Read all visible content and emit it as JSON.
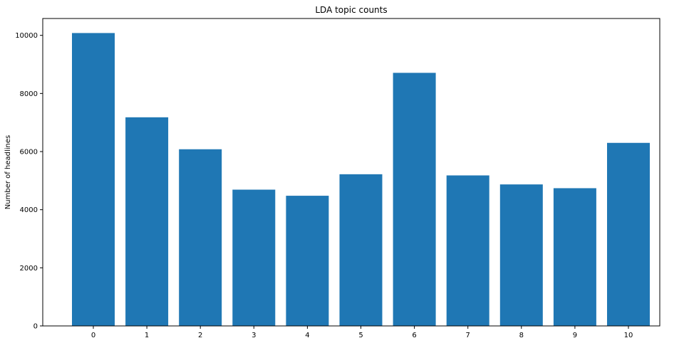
{
  "chart_data": {
    "type": "bar",
    "title": "LDA topic counts",
    "xlabel": "",
    "ylabel": "Number of headlines",
    "categories": [
      "0",
      "1",
      "2",
      "3",
      "4",
      "5",
      "6",
      "7",
      "8",
      "9",
      "10"
    ],
    "values": [
      10080,
      7180,
      6080,
      4690,
      4480,
      5220,
      8710,
      5180,
      4870,
      4740,
      6300
    ],
    "yticks": [
      "0",
      "2000",
      "4000",
      "6000",
      "8000",
      "10000"
    ],
    "ylim": [
      0,
      10580
    ],
    "grid": false,
    "bar_color": "#1f77b4"
  }
}
